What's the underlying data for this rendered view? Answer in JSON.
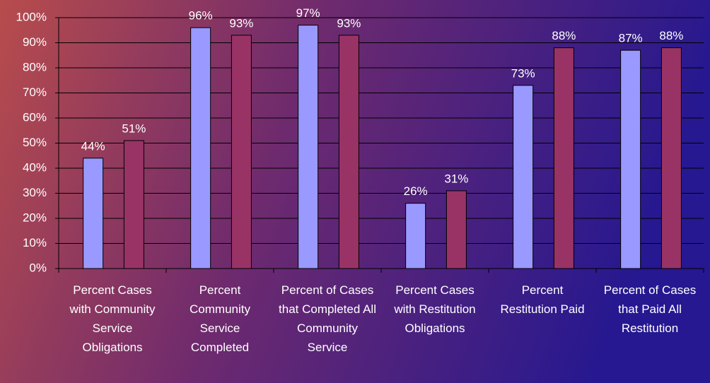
{
  "chart_data": {
    "type": "bar",
    "categories": [
      "Percent Cases with Community Service Obligations",
      "Percent Community Service Completed",
      "Percent of Cases that Completed All Community Service",
      "Percent Cases with Restitution Obligations",
      "Percent Restitution Paid",
      "Percent of Cases that Paid All Restitution"
    ],
    "series": [
      {
        "color": "#9999ff",
        "values": [
          44,
          96,
          97,
          26,
          73,
          87
        ],
        "value_labels": [
          "44%",
          "96%",
          "97%",
          "26%",
          "73%",
          "87%"
        ]
      },
      {
        "color": "#993366",
        "values": [
          51,
          93,
          93,
          31,
          88,
          88
        ],
        "value_labels": [
          "51%",
          "93%",
          "93%",
          "31%",
          "88%",
          "88%"
        ]
      }
    ],
    "ylim": [
      0,
      100
    ],
    "yticks": [
      {
        "value": 0,
        "label": "0%"
      },
      {
        "value": 10,
        "label": "10%"
      },
      {
        "value": 20,
        "label": "20%"
      },
      {
        "value": 30,
        "label": "30%"
      },
      {
        "value": 40,
        "label": "40%"
      },
      {
        "value": 50,
        "label": "50%"
      },
      {
        "value": 60,
        "label": "60%"
      },
      {
        "value": 70,
        "label": "70%"
      },
      {
        "value": 80,
        "label": "80%"
      },
      {
        "value": 90,
        "label": "90%"
      },
      {
        "value": 100,
        "label": "100%"
      }
    ],
    "grid": true
  }
}
